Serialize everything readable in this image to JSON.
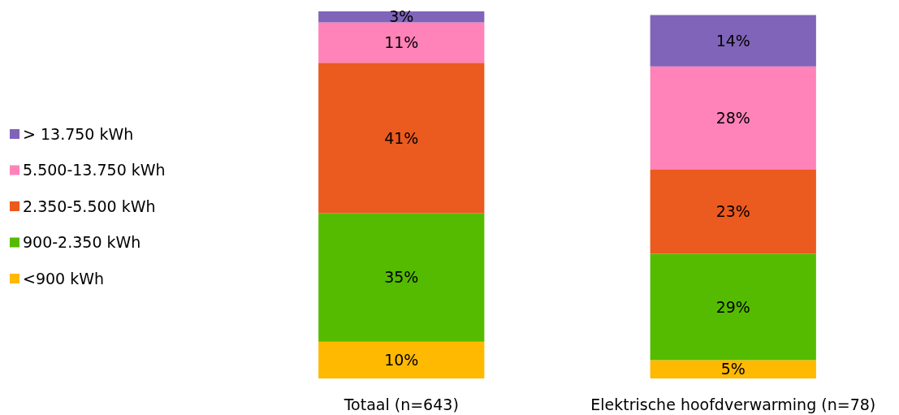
{
  "chart_data": {
    "type": "bar",
    "stacked": true,
    "legend": "left",
    "categories": [
      "Totaal (n=643)",
      "Elektrische hoofdverwarming (n=78)"
    ],
    "series": [
      {
        "name": "<900 kWh",
        "color": "#ffb900",
        "values": [
          10,
          5
        ],
        "value_labels": [
          "10%",
          "5%"
        ]
      },
      {
        "name": "900-2.350 kWh",
        "color": "#55bb00",
        "values": [
          35,
          29
        ],
        "value_labels": [
          "35%",
          "29%"
        ]
      },
      {
        "name": "2.350-5.500 kWh",
        "color": "#eb5a1e",
        "values": [
          41,
          23
        ],
        "value_labels": [
          "41%",
          "23%"
        ]
      },
      {
        "name": "5.500-13.750 kWh",
        "color": "#ff82b9",
        "values": [
          11,
          28
        ],
        "value_labels": [
          "11%",
          "28%"
        ]
      },
      {
        "name": "> 13.750 kWh",
        "color": "#8064b9",
        "values": [
          3,
          14
        ],
        "value_labels": [
          "3%",
          "14%"
        ]
      }
    ]
  }
}
